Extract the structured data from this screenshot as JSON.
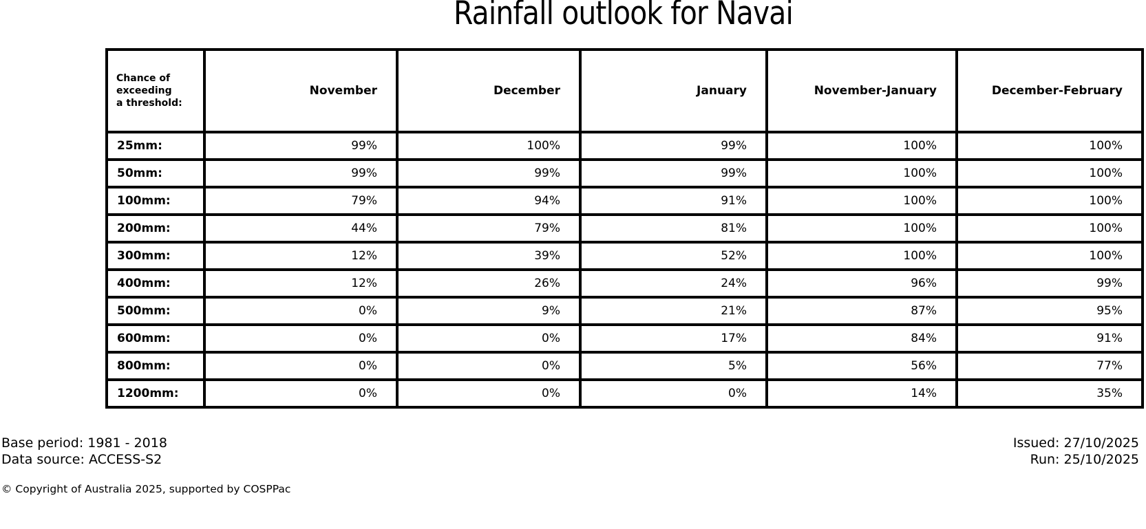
{
  "title": "Rainfall outlook for Navai",
  "table": {
    "corner_label": "Chance of\nexceeding\na threshold:",
    "columns": [
      "November",
      "December",
      "January",
      "November-January",
      "December-February"
    ],
    "rows": [
      {
        "label": "25mm:",
        "values": [
          "99%",
          "100%",
          "99%",
          "100%",
          "100%"
        ]
      },
      {
        "label": "50mm:",
        "values": [
          "99%",
          "99%",
          "99%",
          "100%",
          "100%"
        ]
      },
      {
        "label": "100mm:",
        "values": [
          "79%",
          "94%",
          "91%",
          "100%",
          "100%"
        ]
      },
      {
        "label": "200mm:",
        "values": [
          "44%",
          "79%",
          "81%",
          "100%",
          "100%"
        ]
      },
      {
        "label": "300mm:",
        "values": [
          "12%",
          "39%",
          "52%",
          "100%",
          "100%"
        ]
      },
      {
        "label": "400mm:",
        "values": [
          "12%",
          "26%",
          "24%",
          "96%",
          "99%"
        ]
      },
      {
        "label": "500mm:",
        "values": [
          "0%",
          "9%",
          "21%",
          "87%",
          "95%"
        ]
      },
      {
        "label": "600mm:",
        "values": [
          "0%",
          "0%",
          "17%",
          "84%",
          "91%"
        ]
      },
      {
        "label": "800mm:",
        "values": [
          "0%",
          "0%",
          "5%",
          "56%",
          "77%"
        ]
      },
      {
        "label": "1200mm:",
        "values": [
          "0%",
          "0%",
          "0%",
          "14%",
          "35%"
        ]
      }
    ]
  },
  "footer": {
    "base_period": "Base period: 1981 - 2018",
    "data_source": "Data source: ACCESS-S2",
    "issued": "Issued: 27/10/2025",
    "run": "Run: 25/10/2025",
    "copyright": "© Copyright of Australia 2025, supported by COSPPac"
  },
  "chart_data": {
    "type": "table",
    "title": "Rainfall outlook for Navai",
    "row_header": "Chance of exceeding a threshold:",
    "value_unit": "percent chance of exceeding threshold",
    "categories": [
      "25mm",
      "50mm",
      "100mm",
      "200mm",
      "300mm",
      "400mm",
      "500mm",
      "600mm",
      "800mm",
      "1200mm"
    ],
    "series": [
      {
        "name": "November",
        "values": [
          99,
          99,
          79,
          44,
          12,
          12,
          0,
          0,
          0,
          0
        ]
      },
      {
        "name": "December",
        "values": [
          100,
          99,
          94,
          79,
          39,
          26,
          9,
          0,
          0,
          0
        ]
      },
      {
        "name": "January",
        "values": [
          99,
          99,
          91,
          81,
          52,
          24,
          21,
          17,
          5,
          0
        ]
      },
      {
        "name": "November-January",
        "values": [
          100,
          100,
          100,
          100,
          100,
          96,
          87,
          84,
          56,
          14
        ]
      },
      {
        "name": "December-February",
        "values": [
          100,
          100,
          100,
          100,
          100,
          99,
          95,
          91,
          77,
          35
        ]
      }
    ],
    "colors": {
      "text": "#000000",
      "border": "#000000",
      "background": "#ffffff"
    }
  }
}
